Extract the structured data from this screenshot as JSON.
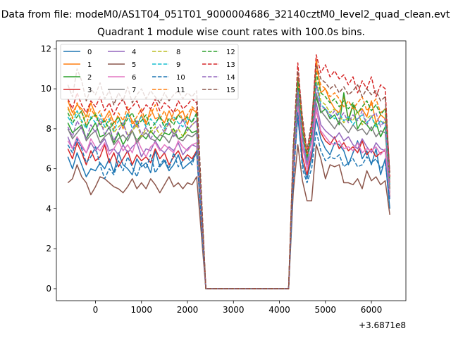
{
  "suptitle": "Data from file: modeM0/AS1T04_051T01_9000004686_32140cztM0_level2_quad_clean.evt",
  "chart_data": {
    "type": "line",
    "title": "Quadrant 1 module wise count rates with 100.0s bins.",
    "xlabel": "",
    "ylabel": "",
    "x_offset_label": "+3.6871e8",
    "xlim": [
      -850,
      6750
    ],
    "ylim": [
      -0.6,
      12.4
    ],
    "xticks": [
      0,
      1000,
      2000,
      3000,
      4000,
      5000,
      6000
    ],
    "yticks": [
      0,
      2,
      4,
      6,
      8,
      10,
      12
    ],
    "xtick_labels": [
      "0",
      "1000",
      "2000",
      "3000",
      "4000",
      "5000",
      "6000"
    ],
    "ytick_labels": [
      "0",
      "2",
      "4",
      "6",
      "8",
      "10",
      "12"
    ],
    "legend_position": "upper-left",
    "legend_columns": 4,
    "x_segments": {
      "seg1": [
        -600,
        -500,
        -400,
        -300,
        -200,
        -100,
        0,
        100,
        200,
        300,
        400,
        500,
        600,
        700,
        800,
        900,
        1000,
        1100,
        1200,
        1300,
        1400,
        1500,
        1600,
        1700,
        1800,
        1900,
        2000,
        2100,
        2200
      ],
      "gap": [
        2400,
        2600,
        2800,
        3000,
        3200,
        3400,
        3600,
        3800,
        4000,
        4200
      ],
      "seg2": [
        4300,
        4400,
        4500,
        4600,
        4700,
        4800,
        4900,
        5000,
        5100,
        5200,
        5300,
        5400,
        5500,
        5600,
        5700,
        5800,
        5900,
        6000,
        6100,
        6200,
        6300,
        6400
      ]
    },
    "series": [
      {
        "name": "0",
        "color": "#1f77b4",
        "dash": "solid",
        "seg1": [
          6.6,
          6.0,
          6.8,
          6.2,
          5.6,
          6.0,
          5.9,
          6.3,
          6.0,
          6.5,
          5.8,
          6.8,
          6.2,
          6.0,
          5.7,
          6.5,
          6.1,
          6.3,
          5.8,
          6.9,
          6.1,
          6.4,
          5.9,
          6.2,
          6.7,
          6.0,
          6.2,
          6.4,
          6.8
        ],
        "seg2": [
          5.8,
          8.6,
          6.3,
          5.5,
          6.5,
          8.5,
          7.5,
          7.0,
          6.7,
          7.3,
          7.2,
          6.9,
          6.2,
          6.8,
          7.4,
          6.5,
          6.9,
          6.2,
          7.0,
          5.7,
          6.5,
          4.0
        ]
      },
      {
        "name": "1",
        "color": "#ff7f0e",
        "dash": "solid",
        "seg1": [
          9.4,
          8.8,
          9.2,
          9.0,
          8.6,
          9.3,
          8.7,
          8.2,
          8.5,
          8.9,
          8.3,
          8.6,
          8.0,
          8.8,
          8.4,
          8.1,
          8.7,
          8.2,
          9.0,
          8.5,
          8.6,
          8.3,
          8.9,
          8.4,
          8.7,
          8.9,
          8.2,
          9.0,
          8.8
        ],
        "seg2": [
          6.8,
          10.6,
          8.0,
          6.5,
          7.8,
          11.5,
          9.8,
          10.0,
          9.4,
          9.0,
          8.8,
          9.6,
          8.5,
          9.2,
          8.8,
          9.0,
          8.6,
          9.4,
          8.3,
          8.7,
          8.5,
          5.0
        ]
      },
      {
        "name": "2",
        "color": "#2ca02c",
        "dash": "solid",
        "seg1": [
          8.3,
          7.8,
          8.0,
          8.2,
          7.5,
          7.9,
          8.3,
          7.6,
          7.7,
          8.1,
          7.3,
          7.8,
          7.2,
          7.6,
          7.9,
          7.4,
          7.7,
          7.5,
          7.9,
          7.6,
          7.4,
          7.8,
          7.7,
          8.0,
          7.5,
          7.6,
          8.1,
          7.8,
          7.9
        ],
        "seg2": [
          6.2,
          9.6,
          7.0,
          6.4,
          7.5,
          9.6,
          8.8,
          9.0,
          8.5,
          8.7,
          8.2,
          9.8,
          8.4,
          9.2,
          8.0,
          8.4,
          8.2,
          7.9,
          8.3,
          7.6,
          8.1,
          4.8
        ]
      },
      {
        "name": "3",
        "color": "#d62728",
        "dash": "solid",
        "seg1": [
          7.0,
          6.5,
          7.3,
          6.8,
          6.2,
          6.9,
          6.4,
          6.6,
          7.2,
          6.3,
          6.8,
          6.1,
          6.5,
          6.9,
          6.2,
          6.7,
          6.4,
          6.6,
          6.3,
          7.0,
          6.5,
          6.8,
          6.2,
          6.6,
          6.9,
          6.4,
          6.7,
          6.5,
          6.9
        ],
        "seg2": [
          5.5,
          9.2,
          6.6,
          5.7,
          6.8,
          9.0,
          7.8,
          7.4,
          7.2,
          7.6,
          7.0,
          7.3,
          6.9,
          7.1,
          6.8,
          7.4,
          6.7,
          7.0,
          6.6,
          6.8,
          6.9,
          4.6
        ]
      },
      {
        "name": "4",
        "color": "#9467bd",
        "dash": "solid",
        "seg1": [
          7.6,
          7.0,
          7.4,
          7.1,
          6.8,
          7.3,
          6.9,
          7.2,
          7.5,
          6.9,
          7.0,
          6.7,
          7.2,
          6.8,
          7.1,
          7.3,
          6.6,
          7.0,
          6.9,
          7.4,
          7.0,
          6.8,
          7.1,
          6.9,
          7.3,
          6.7,
          7.0,
          7.2,
          7.1
        ],
        "seg2": [
          6.0,
          9.4,
          7.2,
          6.2,
          7.0,
          9.3,
          8.2,
          7.9,
          7.7,
          7.5,
          7.8,
          7.4,
          7.6,
          7.2,
          7.0,
          7.5,
          7.1,
          6.8,
          7.3,
          7.0,
          6.9,
          4.5
        ]
      },
      {
        "name": "5",
        "color": "#8c564b",
        "dash": "solid",
        "seg1": [
          5.3,
          5.5,
          6.2,
          5.6,
          5.3,
          4.7,
          5.1,
          5.6,
          5.5,
          5.3,
          5.1,
          5.0,
          4.8,
          5.1,
          5.5,
          5.0,
          5.3,
          5.0,
          5.5,
          5.2,
          4.8,
          5.2,
          5.6,
          5.1,
          5.3,
          5.0,
          5.3,
          5.2,
          5.6
        ],
        "seg2": [
          4.8,
          7.2,
          5.4,
          4.4,
          4.4,
          7.2,
          6.5,
          5.5,
          6.2,
          6.1,
          6.2,
          5.3,
          5.3,
          5.2,
          5.5,
          5.0,
          5.9,
          5.4,
          5.6,
          5.2,
          5.4,
          3.7
        ]
      },
      {
        "name": "6",
        "color": "#e377c2",
        "dash": "solid",
        "seg1": [
          7.4,
          7.0,
          7.6,
          7.2,
          6.8,
          7.5,
          7.1,
          6.9,
          7.3,
          6.7,
          7.0,
          7.4,
          6.9,
          7.2,
          6.8,
          7.5,
          7.0,
          6.6,
          7.1,
          7.3,
          6.9,
          7.2,
          7.0,
          6.8,
          7.4,
          7.1,
          6.9,
          7.2,
          7.3
        ],
        "seg2": [
          6.1,
          9.1,
          7.1,
          6.0,
          6.9,
          9.0,
          7.9,
          7.6,
          7.3,
          7.2,
          7.4,
          7.0,
          7.1,
          6.9,
          7.3,
          6.8,
          7.0,
          6.9,
          7.1,
          6.7,
          7.0,
          4.8
        ]
      },
      {
        "name": "7",
        "color": "#7f7f7f",
        "dash": "solid",
        "seg1": [
          8.0,
          7.5,
          7.8,
          8.1,
          7.4,
          7.7,
          7.9,
          7.3,
          7.6,
          7.8,
          7.2,
          7.5,
          7.7,
          7.4,
          7.9,
          7.3,
          7.6,
          7.8,
          7.5,
          7.4,
          7.7,
          7.6,
          7.3,
          7.8,
          7.5,
          7.4,
          7.7,
          7.6,
          7.8
        ],
        "seg2": [
          6.3,
          9.6,
          7.5,
          6.6,
          7.6,
          9.8,
          8.9,
          8.6,
          8.3,
          8.0,
          8.4,
          8.1,
          7.8,
          8.2,
          7.9,
          8.0,
          7.7,
          8.1,
          7.6,
          7.9,
          7.8,
          5.0
        ]
      },
      {
        "name": "8",
        "color": "#bcbd22",
        "dash": "dashed",
        "seg1": [
          9.0,
          8.6,
          8.9,
          8.3,
          8.7,
          8.5,
          8.8,
          8.2,
          8.0,
          8.4,
          7.8,
          8.1,
          8.3,
          7.7,
          7.9,
          8.2,
          7.6,
          8.0,
          7.8,
          8.1,
          7.7,
          7.9,
          8.3,
          7.8,
          8.0,
          7.6,
          7.9,
          8.2,
          8.4
        ],
        "seg2": [
          6.5,
          10.2,
          7.8,
          6.3,
          7.7,
          10.5,
          9.4,
          9.2,
          8.8,
          9.0,
          8.7,
          8.3,
          8.6,
          8.4,
          8.9,
          8.2,
          8.5,
          8.7,
          8.1,
          8.4,
          8.3,
          5.1
        ]
      },
      {
        "name": "9",
        "color": "#17becf",
        "dash": "dashed",
        "seg1": [
          8.6,
          8.2,
          8.9,
          8.4,
          8.0,
          8.6,
          8.3,
          8.7,
          8.1,
          8.5,
          7.9,
          8.4,
          8.2,
          8.8,
          8.0,
          8.3,
          8.6,
          8.1,
          8.5,
          8.2,
          8.7,
          8.0,
          8.4,
          8.6,
          8.3,
          8.1,
          8.5,
          8.4,
          8.7
        ],
        "seg2": [
          6.6,
          10.0,
          7.7,
          6.4,
          7.6,
          10.3,
          9.2,
          9.0,
          8.7,
          8.5,
          8.8,
          8.4,
          8.6,
          8.2,
          8.5,
          8.7,
          8.3,
          8.6,
          8.1,
          8.4,
          8.2,
          5.2
        ]
      },
      {
        "name": "10",
        "color": "#1f77b4",
        "dash": "dashed",
        "seg1": [
          7.2,
          6.8,
          7.5,
          7.0,
          6.3,
          6.6,
          7.1,
          6.2,
          5.5,
          6.0,
          5.7,
          6.4,
          5.9,
          6.6,
          6.1,
          5.6,
          6.3,
          6.0,
          6.7,
          5.8,
          6.2,
          6.5,
          6.0,
          6.8,
          6.1,
          6.4,
          6.6,
          6.2,
          6.9
        ],
        "seg2": [
          5.3,
          8.8,
          6.0,
          5.3,
          6.0,
          7.9,
          6.9,
          6.4,
          6.6,
          6.5,
          6.7,
          6.1,
          6.3,
          6.5,
          6.1,
          6.2,
          6.6,
          6.3,
          6.5,
          6.0,
          6.3,
          4.4
        ]
      },
      {
        "name": "11",
        "color": "#ff7f0e",
        "dash": "dashed",
        "seg1": [
          9.1,
          8.5,
          9.3,
          8.8,
          8.2,
          9.0,
          8.6,
          8.9,
          8.3,
          8.7,
          8.0,
          8.8,
          8.4,
          9.1,
          8.2,
          8.6,
          9.0,
          8.3,
          8.7,
          9.2,
          8.5,
          8.9,
          8.2,
          8.8,
          9.0,
          8.4,
          8.7,
          9.1,
          8.9
        ],
        "seg2": [
          6.9,
          10.6,
          8.2,
          6.6,
          8.0,
          11.0,
          10.2,
          10.0,
          9.6,
          9.8,
          9.5,
          9.1,
          9.4,
          9.0,
          9.3,
          9.6,
          8.9,
          9.2,
          9.5,
          8.8,
          9.0,
          5.3
        ]
      },
      {
        "name": "12",
        "color": "#2ca02c",
        "dash": "dashed",
        "seg1": [
          8.8,
          8.3,
          8.6,
          8.9,
          8.1,
          8.5,
          8.7,
          8.2,
          8.4,
          8.0,
          8.3,
          8.6,
          8.1,
          8.5,
          8.8,
          8.2,
          8.4,
          8.7,
          8.0,
          8.3,
          8.6,
          8.1,
          8.5,
          8.2,
          8.7,
          8.4,
          8.6,
          8.3,
          8.8
        ],
        "seg2": [
          6.7,
          10.4,
          7.9,
          6.5,
          7.8,
          10.8,
          9.8,
          9.6,
          9.3,
          9.5,
          9.1,
          9.4,
          9.0,
          9.3,
          8.8,
          9.1,
          9.4,
          8.9,
          9.2,
          8.7,
          9.0,
          5.4
        ]
      },
      {
        "name": "13",
        "color": "#d62728",
        "dash": "dashed",
        "seg1": [
          9.5,
          9.0,
          9.8,
          9.2,
          8.8,
          9.4,
          9.1,
          9.6,
          8.9,
          9.3,
          8.7,
          9.2,
          9.5,
          8.9,
          9.1,
          9.4,
          8.8,
          9.2,
          9.0,
          9.5,
          8.9,
          9.3,
          9.1,
          8.8,
          9.4,
          9.0,
          9.2,
          9.5,
          9.3
        ],
        "seg2": [
          7.0,
          11.3,
          8.4,
          6.8,
          8.1,
          11.7,
          10.8,
          11.2,
          10.6,
          10.9,
          10.5,
          10.7,
          10.2,
          10.6,
          9.8,
          10.4,
          10.0,
          10.6,
          9.6,
          10.2,
          10.0,
          5.6
        ]
      },
      {
        "name": "14",
        "color": "#9467bd",
        "dash": "dashed",
        "seg1": [
          8.1,
          7.6,
          8.4,
          8.0,
          7.5,
          8.2,
          7.8,
          8.5,
          7.7,
          8.1,
          7.4,
          7.9,
          8.3,
          7.6,
          8.0,
          8.4,
          7.7,
          8.1,
          7.5,
          7.9,
          8.2,
          7.8,
          8.3,
          7.6,
          8.0,
          8.5,
          7.9,
          8.2,
          8.4
        ],
        "seg2": [
          6.4,
          9.9,
          7.6,
          6.3,
          7.5,
          10.2,
          9.1,
          9.0,
          8.6,
          8.9,
          8.5,
          8.8,
          8.3,
          8.7,
          8.4,
          8.9,
          8.2,
          8.6,
          8.8,
          8.1,
          8.5,
          5.2
        ]
      },
      {
        "name": "15",
        "color": "#8c564b",
        "dash": "dashed",
        "seg1": [
          10.2,
          9.6,
          11.0,
          10.4,
          9.4,
          10.0,
          9.7,
          10.3,
          9.5,
          9.9,
          9.2,
          9.8,
          9.4,
          10.1,
          9.3,
          9.7,
          10.0,
          9.5,
          9.9,
          9.6,
          9.3,
          9.8,
          9.4,
          9.7,
          9.9,
          9.5,
          9.8,
          9.6,
          9.9
        ],
        "seg2": [
          7.1,
          10.9,
          8.6,
          6.9,
          8.4,
          11.2,
          10.5,
          10.3,
          10.0,
          10.2,
          9.8,
          10.1,
          9.7,
          9.9,
          10.2,
          9.6,
          10.0,
          9.7,
          9.9,
          9.4,
          9.6,
          5.8
        ]
      }
    ]
  }
}
